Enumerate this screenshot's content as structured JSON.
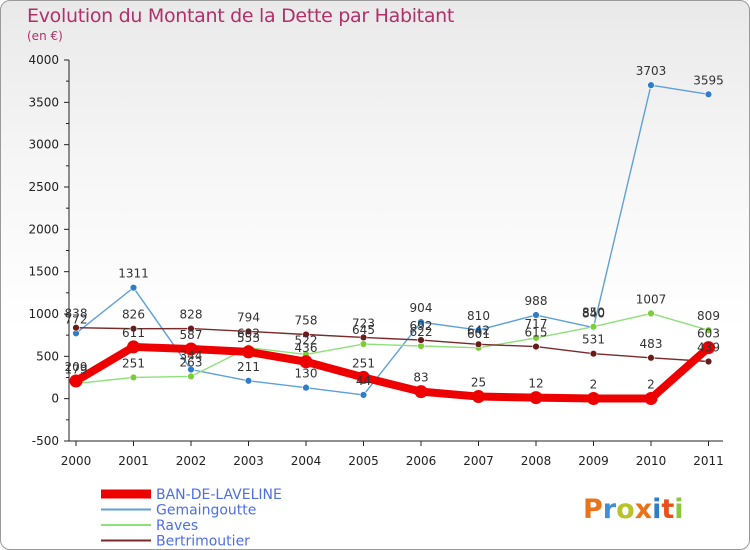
{
  "header": {
    "title": "Evolution du Montant de la Dette par Habitant",
    "subtitle": "(en €)"
  },
  "logo": {
    "text": "Proxiti",
    "colors": [
      "#e8731a",
      "#3d8fd6",
      "#b6c42a",
      "#e8731a",
      "#2f7cc9",
      "#e84f1a",
      "#8cc63f"
    ]
  },
  "chart_data": {
    "type": "line",
    "x": [
      "2000",
      "2001",
      "2002",
      "2003",
      "2004",
      "2005",
      "2006",
      "2007",
      "2008",
      "2009",
      "2010",
      "2011"
    ],
    "ylim": [
      -500,
      4000
    ],
    "yticks": [
      -500,
      0,
      500,
      1000,
      1500,
      2000,
      2500,
      3000,
      3500,
      4000
    ],
    "grid": false,
    "legend_position": "bottom-left",
    "series": [
      {
        "name": "BAN-DE-LAVELINE",
        "color": "#ee0000",
        "width": 8,
        "marker_color": "#ee0000",
        "values": [
          209,
          611,
          587,
          553,
          436,
          251,
          83,
          25,
          12,
          2,
          2,
          603
        ]
      },
      {
        "name": "Gemaingoutte",
        "color": "#5fa0d8",
        "width": 1.4,
        "marker_color": "#2f7cc9",
        "values": [
          772,
          1311,
          344,
          211,
          130,
          44,
          904,
          810,
          988,
          840,
          3703,
          3595
        ]
      },
      {
        "name": "Raves",
        "color": "#8fe07a",
        "width": 1.4,
        "marker_color": "#7ccc3a",
        "values": [
          179,
          251,
          263,
          602,
          522,
          645,
          622,
          601,
          717,
          850,
          1007,
          809
        ]
      },
      {
        "name": "Bertrimoutier",
        "color": "#7a2a2a",
        "width": 1.4,
        "marker_color": "#6b1a1a",
        "values": [
          838,
          826,
          828,
          794,
          758,
          723,
          692,
          642,
          615,
          531,
          483,
          439
        ]
      }
    ]
  }
}
